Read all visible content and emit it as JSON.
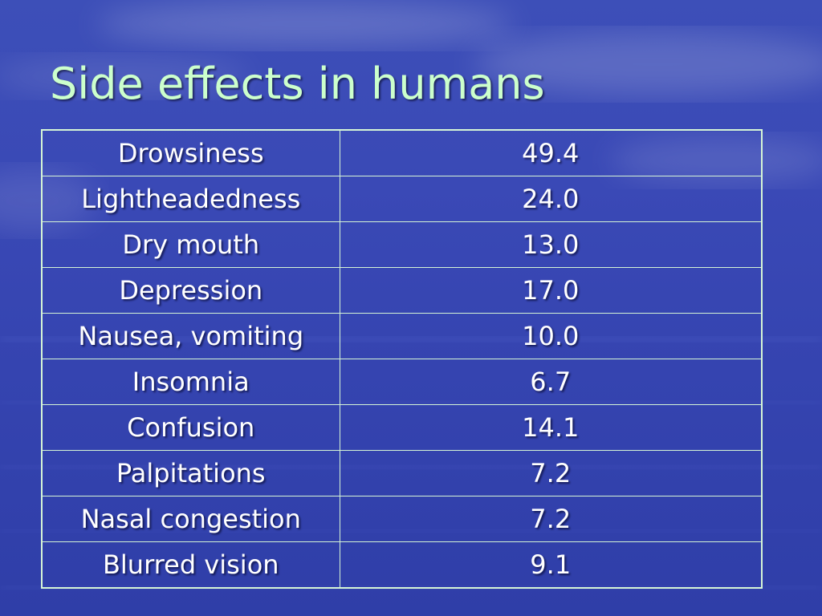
{
  "slide": {
    "title": "Side effects in humans"
  },
  "table": {
    "rows": [
      {
        "label": "Drowsiness",
        "value": "49.4"
      },
      {
        "label": "Lightheadedness",
        "value": "24.0"
      },
      {
        "label": "Dry mouth",
        "value": "13.0"
      },
      {
        "label": "Depression",
        "value": "17.0"
      },
      {
        "label": "Nausea, vomiting",
        "value": "10.0"
      },
      {
        "label": "Insomnia",
        "value": "6.7"
      },
      {
        "label": "Confusion",
        "value": "14.1"
      },
      {
        "label": "Palpitations",
        "value": "7.2"
      },
      {
        "label": "Nasal congestion",
        "value": "7.2"
      },
      {
        "label": "Blurred vision",
        "value": "9.1"
      }
    ]
  },
  "colors": {
    "background": "#3a49b6",
    "title_text": "#ccffcc",
    "cell_text": "#ffffff",
    "grid_lines": "#d6f5d6"
  }
}
